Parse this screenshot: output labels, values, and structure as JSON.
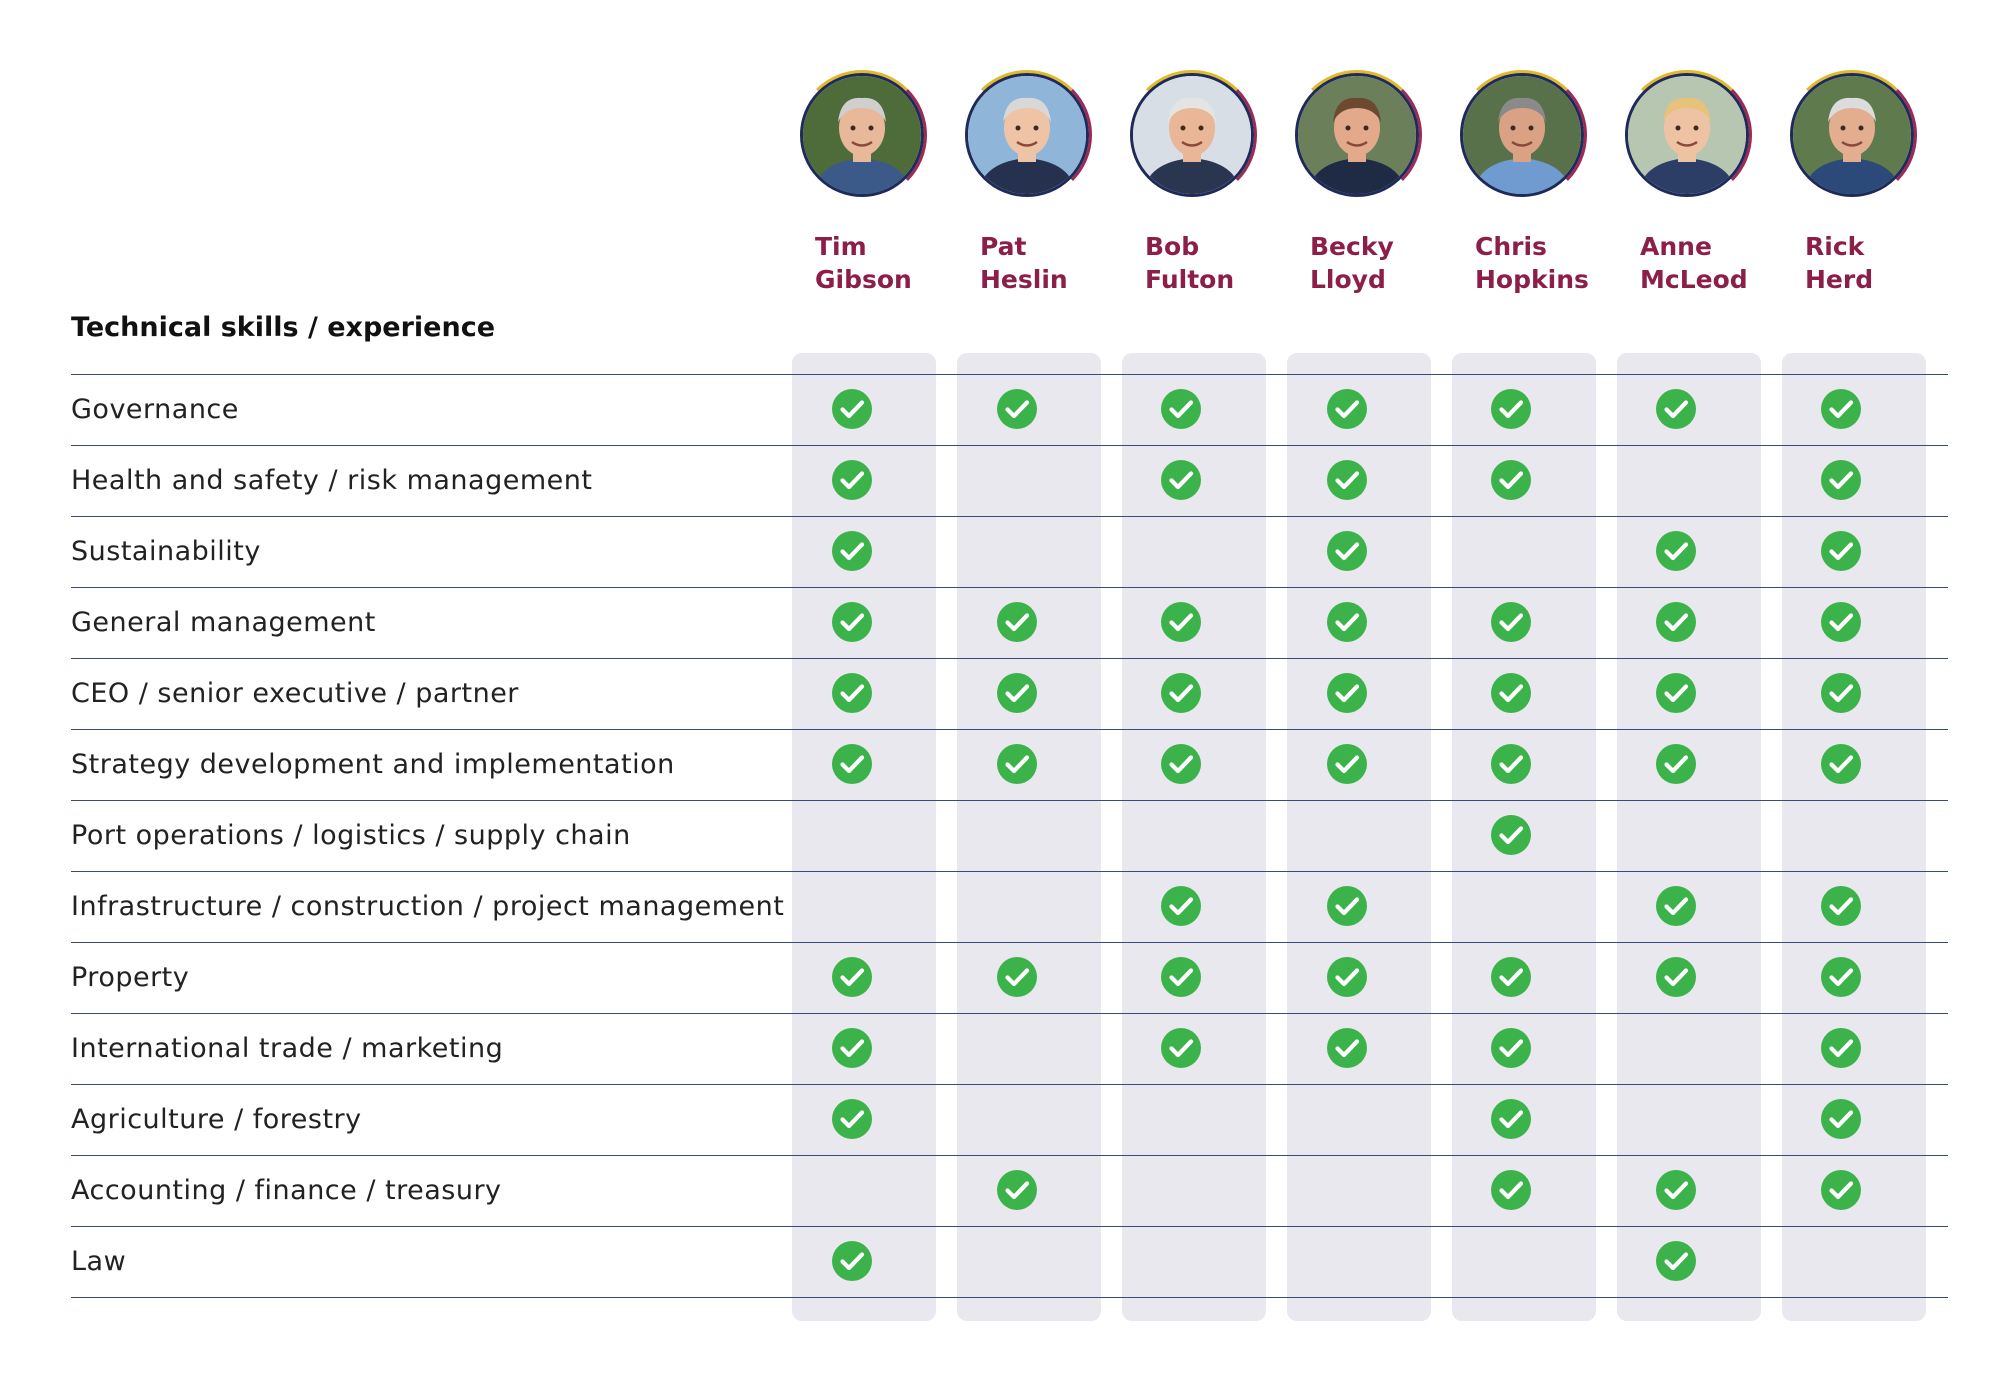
{
  "section_title": "Technical skills / experience",
  "colors": {
    "name": "#8c1f4a",
    "check": "#3cb34a",
    "column_bg": "#e8e8ee",
    "line": "#3a4a7a"
  },
  "members": [
    {
      "first": "Tim",
      "last": "Gibson"
    },
    {
      "first": "Pat",
      "last": "Heslin"
    },
    {
      "first": "Bob",
      "last": "Fulton"
    },
    {
      "first": "Becky",
      "last": "Lloyd"
    },
    {
      "first": "Chris",
      "last": "Hopkins"
    },
    {
      "first": "Anne",
      "last": "McLeod"
    },
    {
      "first": "Rick",
      "last": "Herd"
    }
  ],
  "skills": [
    {
      "label": "Governance",
      "checks": [
        1,
        1,
        1,
        1,
        1,
        1,
        1
      ]
    },
    {
      "label": "Health and safety / risk management",
      "checks": [
        1,
        0,
        1,
        1,
        1,
        0,
        1
      ]
    },
    {
      "label": "Sustainability",
      "checks": [
        1,
        0,
        0,
        1,
        0,
        1,
        1
      ]
    },
    {
      "label": "General management",
      "checks": [
        1,
        1,
        1,
        1,
        1,
        1,
        1
      ]
    },
    {
      "label": "CEO / senior executive / partner",
      "checks": [
        1,
        1,
        1,
        1,
        1,
        1,
        1
      ]
    },
    {
      "label": "Strategy development and implementation",
      "checks": [
        1,
        1,
        1,
        1,
        1,
        1,
        1
      ]
    },
    {
      "label": "Port operations / logistics / supply chain",
      "checks": [
        0,
        0,
        0,
        0,
        1,
        0,
        0
      ]
    },
    {
      "label": "Infrastructure / construction / project management",
      "checks": [
        0,
        0,
        1,
        1,
        0,
        1,
        1
      ]
    },
    {
      "label": "Property",
      "checks": [
        1,
        1,
        1,
        1,
        1,
        1,
        1
      ]
    },
    {
      "label": "International trade / marketing",
      "checks": [
        1,
        0,
        1,
        1,
        1,
        0,
        1
      ]
    },
    {
      "label": "Agriculture / forestry",
      "checks": [
        1,
        0,
        0,
        0,
        1,
        0,
        1
      ]
    },
    {
      "label": "Accounting / finance / treasury",
      "checks": [
        0,
        1,
        0,
        0,
        1,
        1,
        1
      ]
    },
    {
      "label": "Law",
      "checks": [
        1,
        0,
        0,
        0,
        0,
        1,
        0
      ]
    }
  ]
}
